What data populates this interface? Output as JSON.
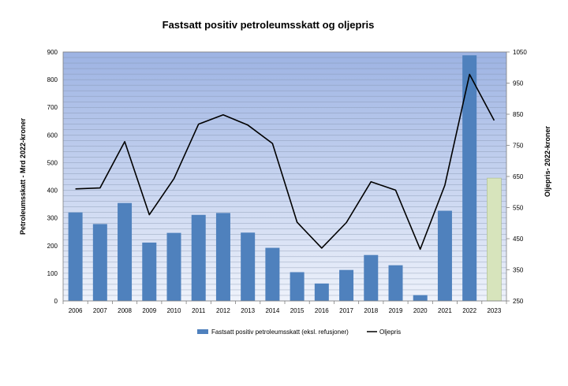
{
  "chart_data": {
    "type": "bar",
    "title": "Fastsatt positiv petroleumsskatt og oljepris",
    "categories": [
      "2006",
      "2007",
      "2008",
      "2009",
      "2010",
      "2011",
      "2012",
      "2013",
      "2014",
      "2015",
      "2016",
      "2017",
      "2018",
      "2019",
      "2020",
      "2021",
      "2022",
      "2023"
    ],
    "y_left": {
      "label": "Petroleumsskatt -  Mrd  2022-kroner",
      "ylim": [
        0,
        900
      ],
      "ticks": [
        0,
        100,
        200,
        300,
        400,
        500,
        600,
        700,
        800,
        900
      ]
    },
    "y_right": {
      "label": "Oljepris- 2022-kroner",
      "ylim": [
        250,
        1050
      ],
      "ticks": [
        250,
        350,
        450,
        550,
        650,
        750,
        850,
        950,
        1050
      ]
    },
    "series": [
      {
        "name": "Fastsatt positiv petroleumsskatt (eksl. refusjoner)",
        "type": "bar",
        "axis": "left",
        "color": "#4f81bd",
        "values": [
          320,
          278,
          354,
          211,
          246,
          311,
          318,
          247,
          192,
          104,
          63,
          112,
          166,
          129,
          21,
          326,
          888,
          444
        ]
      },
      {
        "name": "Oljepris",
        "type": "line",
        "axis": "right",
        "color": "#000000",
        "values": [
          610,
          613,
          762,
          527,
          643,
          818,
          848,
          815,
          756,
          503,
          420,
          502,
          633,
          606,
          416,
          622,
          978,
          830
        ]
      }
    ],
    "highlight": {
      "index": 17,
      "color": "#d7e4bc"
    },
    "grid": true,
    "legend": "bottom"
  }
}
